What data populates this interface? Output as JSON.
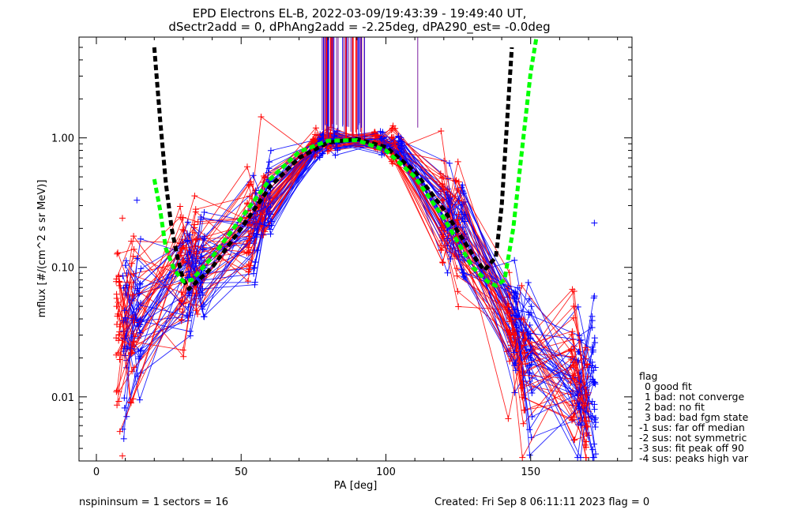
{
  "chart_data": {
    "type": "line",
    "title_line1": "EPD Electrons EL-B, 2022-03-09/19:43:39 - 19:49:40 UT,",
    "title_line2": "dSectr2add = 0, dPhAng2add = -2.25deg, dPA290_est=  -0.0deg",
    "xlabel": "PA [deg]",
    "ylabel": "mflux [#/(cm^2 s sr MeV)]",
    "xlim": [
      -6,
      185
    ],
    "ylim": [
      0.0032,
      6.0
    ],
    "yscale": "log",
    "x_ticks": [
      0,
      50,
      100,
      150
    ],
    "x_tick_labels": [
      "0",
      "50",
      "100",
      "150"
    ],
    "y_ticks": [
      0.01,
      0.1,
      1.0
    ],
    "y_tick_labels": [
      "0.01",
      "0.10",
      "1.00"
    ],
    "sector_pa": [
      9,
      14,
      31,
      36,
      54,
      59,
      77,
      82,
      98,
      104,
      121,
      126,
      144,
      149,
      166,
      171
    ],
    "colors": {
      "red": "#ff0000",
      "blue": "#0000ff",
      "purple": "#7a1fa0",
      "black": "#000000",
      "green": "#00ff00"
    },
    "fit_black": {
      "x": [
        20,
        22,
        24,
        26,
        28,
        30,
        32,
        40,
        50,
        60,
        70,
        80,
        90,
        100,
        110,
        120,
        130,
        134,
        138,
        140,
        142,
        143.5
      ],
      "y": [
        5.0,
        1.4,
        0.45,
        0.2,
        0.12,
        0.08,
        0.068,
        0.1,
        0.2,
        0.42,
        0.7,
        0.92,
        0.98,
        0.85,
        0.55,
        0.28,
        0.125,
        0.095,
        0.12,
        0.3,
        1.5,
        5.0
      ]
    },
    "fit_green": {
      "x": [
        20,
        22,
        24,
        27,
        30,
        33,
        40,
        50,
        60,
        70,
        80,
        90,
        100,
        110,
        120,
        130,
        135,
        138,
        141,
        144,
        147,
        150,
        152
      ],
      "y": [
        0.48,
        0.28,
        0.14,
        0.095,
        0.078,
        0.08,
        0.12,
        0.24,
        0.48,
        0.78,
        0.95,
        0.96,
        0.8,
        0.5,
        0.24,
        0.1,
        0.078,
        0.072,
        0.08,
        0.2,
        0.8,
        3.2,
        6.0
      ]
    },
    "legend": {
      "title": "flag",
      "entries": [
        " 0 good fit",
        " 1 bad: not converge",
        " 2 bad: no fit",
        " 3 bad: bad fgm state",
        "-1 sus: far off median",
        "-2 sus: not symmetric",
        "-3 sus: fit peak off 90",
        "-4 sus: peaks high var"
      ],
      "placement": "right"
    },
    "footer_left": "nspininsum =  1  sectors = 16",
    "footer_right": "Created: Fri Sep  8 06:11:11 2023   flag = 0"
  }
}
